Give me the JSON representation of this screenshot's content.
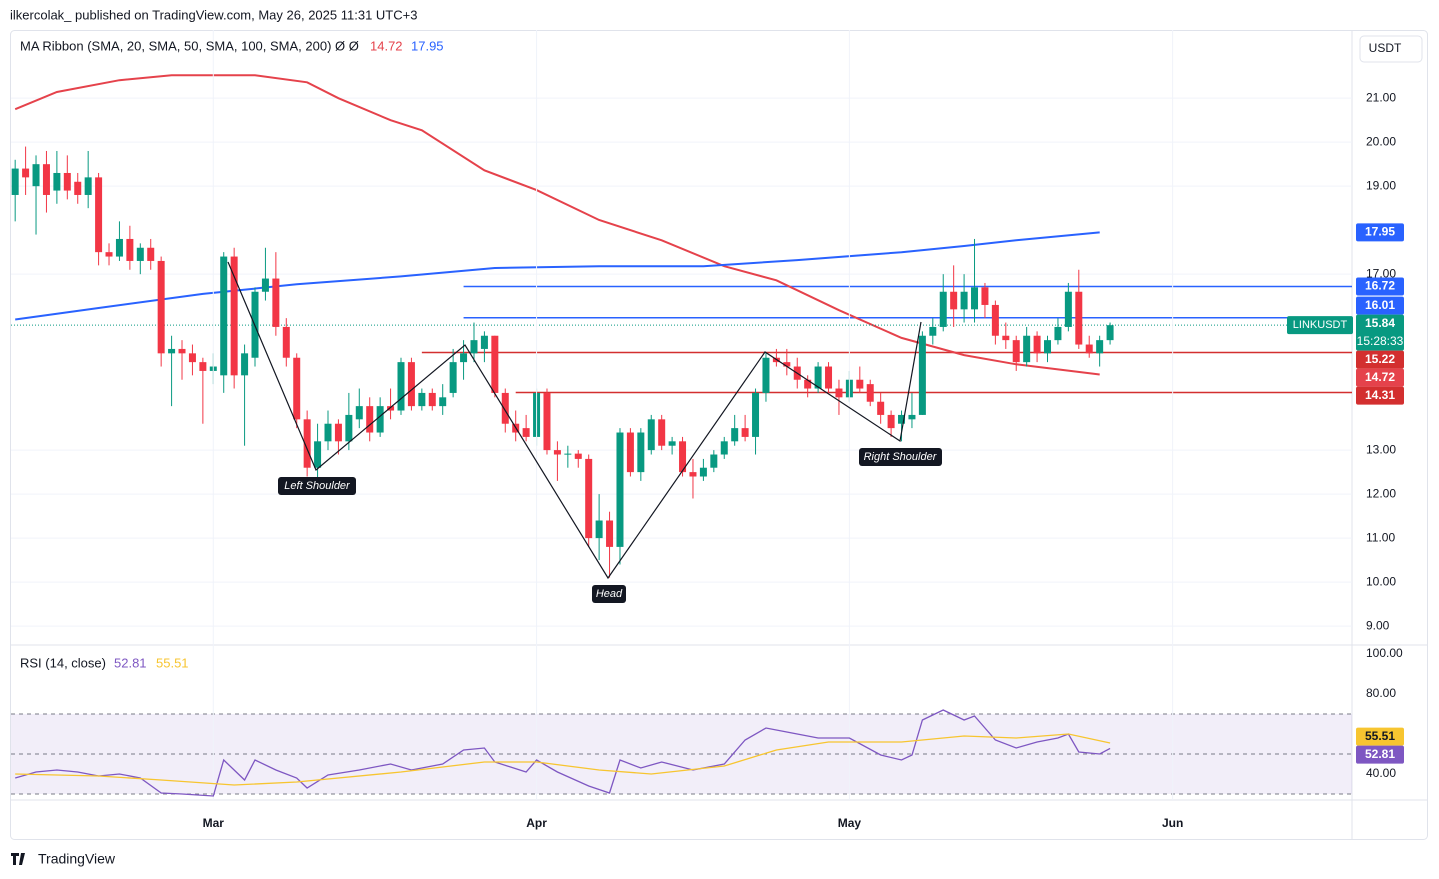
{
  "header": "ilkercolak_  published on TradingView.com, May 26, 2025 11:31 UTC+3",
  "footer": "TradingView",
  "currency": "USDT",
  "chart_data": [
    {
      "type": "candlestick",
      "symbol": "LINKUSDT",
      "countdown": "15:28:33",
      "legend": {
        "title": "MA Ribbon (SMA, 20, SMA, 50, SMA, 100, SMA, 200)",
        "flags": "Ø Ø"
      },
      "open": [
        18.8,
        19.4,
        19.0,
        19.5,
        18.9,
        19.3,
        19.1,
        18.8,
        19.2,
        17.5,
        17.4,
        17.8,
        17.3,
        17.6,
        17.3,
        15.2,
        15.3,
        15.2,
        15.0,
        14.8,
        14.7,
        17.4,
        14.7,
        15.1,
        16.6,
        16.9,
        15.8,
        15.1,
        13.7,
        12.6,
        13.2,
        13.6,
        13.2,
        13.7,
        14.0,
        13.4,
        14.0,
        13.9,
        15.0,
        14.0,
        14.3,
        14.0,
        14.3,
        15.0,
        15.2,
        15.3,
        15.6,
        14.3,
        13.6,
        13.5,
        13.3,
        14.3,
        13.0,
        12.9,
        12.92,
        12.8,
        11.0,
        11.4,
        10.8,
        13.4,
        12.5,
        13.0,
        13.7,
        13.1,
        13.2,
        12.5,
        12.4,
        12.6,
        12.9,
        13.2,
        13.5,
        13.3,
        14.3,
        15.1,
        15.0,
        14.9,
        14.6,
        14.4,
        14.9,
        14.4,
        14.2,
        14.6,
        14.5,
        14.1,
        13.8,
        13.6,
        13.7,
        13.8,
        15.6,
        15.8,
        16.6,
        16.2,
        16.2,
        16.7,
        16.3,
        15.6,
        15.5,
        15.0,
        15.6,
        15.2,
        15.5,
        15.8,
        16.6,
        15.4,
        15.2,
        15.5
      ],
      "high": [
        19.6,
        19.9,
        19.7,
        19.8,
        19.8,
        19.7,
        19.3,
        19.8,
        19.3,
        17.7,
        18.2,
        18.1,
        17.7,
        17.8,
        17.4,
        15.6,
        15.5,
        15.4,
        15.1,
        15.2,
        17.5,
        17.6,
        15.4,
        16.7,
        17.6,
        17.5,
        16.0,
        15.2,
        13.9,
        13.6,
        13.9,
        13.7,
        14.3,
        14.4,
        14.2,
        14.2,
        14.4,
        15.1,
        15.1,
        14.4,
        14.4,
        14.5,
        15.3,
        15.5,
        15.9,
        15.7,
        15.6,
        14.4,
        13.9,
        13.8,
        14.4,
        14.4,
        13.2,
        13.1,
        13.0,
        12.9,
        12.0,
        11.6,
        13.5,
        13.5,
        13.5,
        13.8,
        13.8,
        13.3,
        13.3,
        12.8,
        12.8,
        13.0,
        13.3,
        13.8,
        13.8,
        14.4,
        15.2,
        15.3,
        15.3,
        15.1,
        14.7,
        15.0,
        15.0,
        14.6,
        14.8,
        14.9,
        14.6,
        14.3,
        13.9,
        13.9,
        14.3,
        15.7,
        16.0,
        17.0,
        17.2,
        17.0,
        17.8,
        16.8,
        16.4,
        15.9,
        15.6,
        15.8,
        15.7,
        15.6,
        16.0,
        16.8,
        17.1,
        15.6,
        15.6,
        15.9
      ],
      "low": [
        18.2,
        18.8,
        17.9,
        18.4,
        18.6,
        18.7,
        18.6,
        18.5,
        17.2,
        17.2,
        17.3,
        17.1,
        17.0,
        17.1,
        14.9,
        14.0,
        14.6,
        14.7,
        13.6,
        14.5,
        14.3,
        14.4,
        13.1,
        14.9,
        16.4,
        15.6,
        14.9,
        13.5,
        12.4,
        12.0,
        13.0,
        12.9,
        13.0,
        13.5,
        13.2,
        13.3,
        13.7,
        13.8,
        13.9,
        13.9,
        13.9,
        13.8,
        14.2,
        14.6,
        15.0,
        15.0,
        14.2,
        13.4,
        13.2,
        13.2,
        13.1,
        12.9,
        12.3,
        12.6,
        12.6,
        10.8,
        10.5,
        10.1,
        10.4,
        12.4,
        12.3,
        12.9,
        13.0,
        12.9,
        12.4,
        11.9,
        12.3,
        12.5,
        12.8,
        13.1,
        13.2,
        12.9,
        14.1,
        14.9,
        14.7,
        14.4,
        14.2,
        14.3,
        14.3,
        13.8,
        14.1,
        14.3,
        14.0,
        13.6,
        13.3,
        13.2,
        13.5,
        13.8,
        15.4,
        15.7,
        15.8,
        15.9,
        15.9,
        16.0,
        15.4,
        15.3,
        14.8,
        14.9,
        15.0,
        15.0,
        15.4,
        15.7,
        15.3,
        15.1,
        14.9,
        15.4
      ],
      "close": [
        19.4,
        19.2,
        19.5,
        18.8,
        19.3,
        18.9,
        18.8,
        19.2,
        17.5,
        17.4,
        17.8,
        17.3,
        17.6,
        17.3,
        15.2,
        15.3,
        15.2,
        15.0,
        14.8,
        14.9,
        17.4,
        14.7,
        15.2,
        16.6,
        16.9,
        15.8,
        15.1,
        13.7,
        12.6,
        13.2,
        13.6,
        13.2,
        13.8,
        14.0,
        13.4,
        14.0,
        13.9,
        15.0,
        14.0,
        14.3,
        14.0,
        14.2,
        15.0,
        15.2,
        15.5,
        15.6,
        14.3,
        13.6,
        13.4,
        13.3,
        14.3,
        13.0,
        12.9,
        12.92,
        12.8,
        11.0,
        11.4,
        10.8,
        13.4,
        12.5,
        13.4,
        13.7,
        13.1,
        13.2,
        12.5,
        12.4,
        12.6,
        12.9,
        13.2,
        13.5,
        13.3,
        14.3,
        15.1,
        15.0,
        14.9,
        14.6,
        14.4,
        14.9,
        14.4,
        14.2,
        14.6,
        14.4,
        14.1,
        13.8,
        13.5,
        13.8,
        13.8,
        15.6,
        15.8,
        16.6,
        16.2,
        16.6,
        16.7,
        16.3,
        15.6,
        15.5,
        15.0,
        15.6,
        15.2,
        15.5,
        15.8,
        16.6,
        15.4,
        15.2,
        15.5,
        15.84
      ],
      "up_color": "#089981",
      "down_color": "#f23645",
      "series": [
        {
          "color": "#e5424b",
          "x": [
            0,
            4,
            10,
            15,
            23,
            28,
            31,
            36,
            39,
            45,
            50,
            56,
            62,
            68,
            73,
            79,
            85,
            91,
            96,
            104
          ],
          "values": [
            20.75,
            21.14,
            21.41,
            21.52,
            21.52,
            21.36,
            21.0,
            20.5,
            20.27,
            19.36,
            18.91,
            18.23,
            17.77,
            17.18,
            16.86,
            16.18,
            15.55,
            15.16,
            14.95,
            14.72
          ]
        },
        {
          "color": "#2962ff",
          "x": [
            0,
            8,
            18,
            27,
            37,
            46,
            56,
            66,
            75,
            85,
            91,
            96,
            104
          ],
          "values": [
            15.97,
            16.23,
            16.55,
            16.77,
            16.95,
            17.14,
            17.18,
            17.18,
            17.32,
            17.5,
            17.64,
            17.77,
            17.95
          ]
        }
      ],
      "levels": [
        {
          "value": 16.72,
          "color": "#2962ff",
          "from": 43
        },
        {
          "value": 16.01,
          "color": "#2962ff",
          "from": 43
        },
        {
          "value": 15.22,
          "color": "#d32f2f",
          "from": 39
        },
        {
          "value": 14.31,
          "color": "#d32f2f",
          "from": 48
        }
      ],
      "annotations": [
        "Left Shoulder",
        "Head",
        "Right Shoulder"
      ],
      "xlim": [
        -0.4,
        128.2
      ],
      "ylim": [
        8.57,
        22.55
      ],
      "yticks": [
        {
          "value": 9,
          "label": "9.00"
        },
        {
          "value": 10,
          "label": "10.00"
        },
        {
          "value": 11,
          "label": "11.00"
        },
        {
          "value": 12,
          "label": "12.00"
        },
        {
          "value": 13,
          "label": "13.00"
        },
        {
          "value": 17,
          "label": "17.00"
        },
        {
          "value": 19,
          "label": "19.00"
        },
        {
          "value": 20,
          "label": "20.00"
        },
        {
          "value": 21,
          "label": "21.00"
        }
      ],
      "grid": true
    },
    {
      "type": "line",
      "legend": {
        "title": "RSI (14, close)"
      },
      "series": [
        {
          "color": "#7e57c2",
          "x": [
            0,
            2,
            4,
            6,
            8,
            10,
            12,
            14,
            16,
            19,
            20,
            22,
            23,
            25,
            27,
            28,
            30,
            33,
            36,
            38,
            41,
            43,
            45,
            46,
            49,
            50,
            52,
            55,
            57,
            58,
            60,
            62,
            65,
            68,
            70,
            72,
            74,
            77,
            80,
            83,
            85,
            86,
            87,
            89,
            91,
            92,
            94,
            96,
            98,
            100,
            101,
            102,
            104,
            105
          ],
          "values": [
            38,
            41,
            42,
            41,
            39,
            40,
            38,
            30.5,
            30,
            29,
            47,
            37,
            47,
            42,
            38,
            33,
            39.5,
            42,
            45,
            42,
            45,
            52,
            53,
            46,
            41,
            47,
            41,
            34,
            30.5,
            47,
            43,
            46,
            42,
            45,
            57,
            63,
            61,
            58,
            58,
            49.5,
            47,
            49.5,
            67,
            72,
            67,
            69,
            57,
            53,
            56,
            58,
            60,
            51,
            50,
            52.81
          ]
        },
        {
          "color": "#f7c530",
          "x": [
            0,
            8,
            14,
            21,
            27,
            37,
            45,
            50,
            56,
            61,
            68,
            73,
            78,
            85,
            91,
            96,
            101,
            105
          ],
          "values": [
            40,
            39,
            37,
            34.5,
            36,
            41,
            46,
            46,
            42,
            40,
            44,
            52,
            56,
            56,
            59,
            58,
            60,
            55.51
          ]
        }
      ],
      "levels": [
        70,
        50,
        30
      ],
      "band_color": "#7e57c2",
      "xlim": [
        -0.4,
        128.2
      ],
      "ylim": [
        27,
        104.5
      ],
      "yticks": [
        {
          "value": 40,
          "label": "40.00"
        },
        {
          "value": 80,
          "label": "80.00"
        },
        {
          "value": 100,
          "label": "100.00"
        }
      ],
      "xticks": [
        {
          "value": 19,
          "label": "Mar"
        },
        {
          "value": 50,
          "label": "Apr"
        },
        {
          "value": 80,
          "label": "May"
        },
        {
          "value": 111,
          "label": "Jun"
        }
      ]
    }
  ]
}
